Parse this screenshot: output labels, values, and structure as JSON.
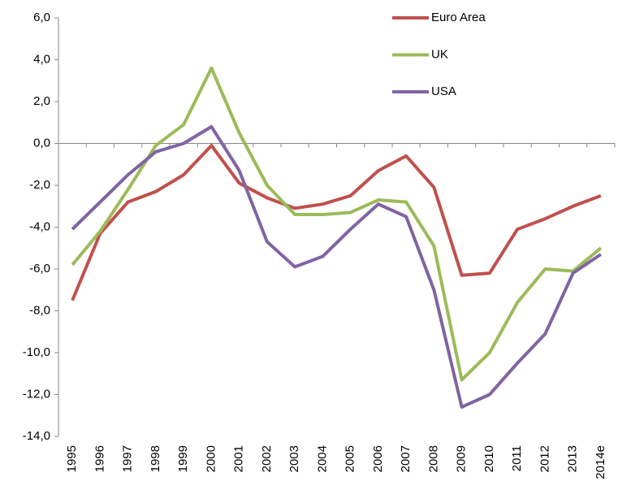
{
  "chart_data": {
    "type": "line",
    "categories": [
      "1995",
      "1996",
      "1997",
      "1998",
      "1999",
      "2000",
      "2001",
      "2002",
      "2003",
      "2004",
      "2005",
      "2006",
      "2007",
      "2008",
      "2009",
      "2010",
      "2011",
      "2012",
      "2013",
      "2014e"
    ],
    "series": [
      {
        "name": "Euro Area",
        "color": "#c0504d",
        "values": [
          -7.5,
          -4.3,
          -2.8,
          -2.3,
          -1.5,
          -0.1,
          -1.9,
          -2.6,
          -3.1,
          -2.9,
          -2.5,
          -1.3,
          -0.6,
          -2.1,
          -6.3,
          -6.2,
          -4.1,
          -3.6,
          -3.0,
          -2.5
        ]
      },
      {
        "name": "UK",
        "color": "#9bbb59",
        "values": [
          -5.8,
          -4.2,
          -2.2,
          -0.1,
          0.9,
          3.6,
          0.5,
          -2.0,
          -3.4,
          -3.4,
          -3.3,
          -2.7,
          -2.8,
          -4.9,
          -11.3,
          -10.0,
          -7.6,
          -6.0,
          -6.1,
          -5.0
        ]
      },
      {
        "name": "USA",
        "color": "#8064a2",
        "values": [
          -4.1,
          -2.8,
          -1.5,
          -0.4,
          0.0,
          0.8,
          -1.3,
          -4.7,
          -5.9,
          -5.4,
          -4.1,
          -2.9,
          -3.5,
          -7.0,
          -12.6,
          -12.0,
          -10.5,
          -9.1,
          -6.2,
          -5.3
        ]
      }
    ],
    "ylim": [
      -14,
      6
    ],
    "yticks": [
      {
        "value": -14,
        "label": "-14,0"
      },
      {
        "value": -12,
        "label": "-12,0"
      },
      {
        "value": -10,
        "label": "-10,0"
      },
      {
        "value": -8,
        "label": "-8,0"
      },
      {
        "value": -6,
        "label": "-6,0"
      },
      {
        "value": -4,
        "label": "-4,0"
      },
      {
        "value": -2,
        "label": "-2,0"
      },
      {
        "value": 0,
        "label": "0,0"
      },
      {
        "value": 2,
        "label": "2,0"
      },
      {
        "value": 4,
        "label": "4,0"
      },
      {
        "value": 6,
        "label": "6,0"
      }
    ],
    "grid": false,
    "legend": "top-right"
  }
}
